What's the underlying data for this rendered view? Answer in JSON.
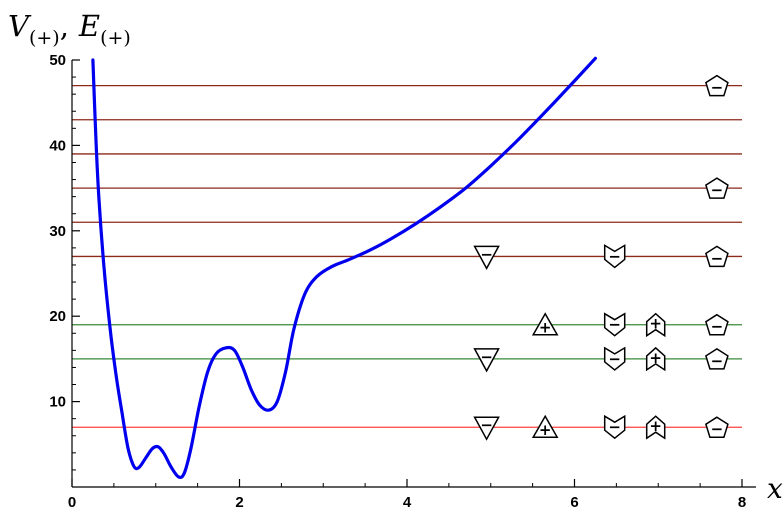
{
  "chart_data": {
    "type": "line",
    "ylabel": "V_{(+)}, E_{(+)}",
    "ylabel_main_1": "V",
    "ylabel_sub_1": "(+)",
    "ylabel_sep": ",",
    "ylabel_main_2": "E",
    "ylabel_sub_2": "(+)",
    "xlabel": "x",
    "xlim": [
      0,
      8
    ],
    "ylim": [
      0,
      50
    ],
    "x_ticks": [
      0,
      2,
      4,
      6,
      8
    ],
    "y_ticks": [
      10,
      20,
      30,
      40,
      50
    ],
    "series": [
      {
        "color": "#0000ee",
        "points": [
          [
            0.25,
            50
          ],
          [
            0.28,
            42
          ],
          [
            0.32,
            34
          ],
          [
            0.38,
            26
          ],
          [
            0.45,
            19
          ],
          [
            0.52,
            13.5
          ],
          [
            0.6,
            8.5
          ],
          [
            0.67,
            4.5
          ],
          [
            0.74,
            2.4
          ],
          [
            0.8,
            2.3
          ],
          [
            0.88,
            3.4
          ],
          [
            0.96,
            4.5
          ],
          [
            1.03,
            4.7
          ],
          [
            1.1,
            3.9
          ],
          [
            1.18,
            2.4
          ],
          [
            1.27,
            1.2
          ],
          [
            1.34,
            1.6
          ],
          [
            1.42,
            4.5
          ],
          [
            1.52,
            9.5
          ],
          [
            1.62,
            13.5
          ],
          [
            1.72,
            15.6
          ],
          [
            1.84,
            16.3
          ],
          [
            1.94,
            16.0
          ],
          [
            2.04,
            14.0
          ],
          [
            2.14,
            11.4
          ],
          [
            2.24,
            9.6
          ],
          [
            2.35,
            9.0
          ],
          [
            2.45,
            10.0
          ],
          [
            2.55,
            13.5
          ],
          [
            2.65,
            18.5
          ],
          [
            2.78,
            22.6
          ],
          [
            2.92,
            24.6
          ],
          [
            3.1,
            25.8
          ],
          [
            3.3,
            26.6
          ],
          [
            3.55,
            27.7
          ],
          [
            3.8,
            29.0
          ],
          [
            4.1,
            30.8
          ],
          [
            4.4,
            32.8
          ],
          [
            4.7,
            35.0
          ],
          [
            5.0,
            37.6
          ],
          [
            5.3,
            40.4
          ],
          [
            5.6,
            43.4
          ],
          [
            5.9,
            46.5
          ],
          [
            6.25,
            50.2
          ]
        ]
      }
    ],
    "energy_levels": [
      {
        "y": 7,
        "color": "#ff4040"
      },
      {
        "y": 15,
        "color": "#3a8a3a"
      },
      {
        "y": 19,
        "color": "#3a8a3a"
      },
      {
        "y": 27,
        "color": "#8b2a1a"
      },
      {
        "y": 31,
        "color": "#8b2a1a"
      },
      {
        "y": 35,
        "color": "#8b2a1a"
      },
      {
        "y": 39,
        "color": "#8b2a1a"
      },
      {
        "y": 43,
        "color": "#8b2a1a"
      },
      {
        "y": 47,
        "color": "#8b2a1a"
      }
    ],
    "markers": [
      {
        "shape": "triangle-down",
        "sign": "−",
        "x": 4.95,
        "y": 7
      },
      {
        "shape": "triangle-up",
        "sign": "+",
        "x": 5.65,
        "y": 7
      },
      {
        "shape": "notched-down",
        "sign": "−",
        "x": 6.48,
        "y": 7
      },
      {
        "shape": "notched-up",
        "sign": "+",
        "x": 6.97,
        "y": 7
      },
      {
        "shape": "pentagon",
        "sign": "−",
        "x": 7.7,
        "y": 7
      },
      {
        "shape": "triangle-down",
        "sign": "−",
        "x": 4.95,
        "y": 15
      },
      {
        "shape": "notched-down",
        "sign": "−",
        "x": 6.48,
        "y": 15
      },
      {
        "shape": "notched-up",
        "sign": "+",
        "x": 6.97,
        "y": 15
      },
      {
        "shape": "pentagon",
        "sign": "−",
        "x": 7.7,
        "y": 15
      },
      {
        "shape": "triangle-up",
        "sign": "+",
        "x": 5.65,
        "y": 19
      },
      {
        "shape": "notched-down",
        "sign": "−",
        "x": 6.48,
        "y": 19
      },
      {
        "shape": "notched-up",
        "sign": "+",
        "x": 6.97,
        "y": 19
      },
      {
        "shape": "pentagon",
        "sign": "−",
        "x": 7.7,
        "y": 19
      },
      {
        "shape": "triangle-down",
        "sign": "−",
        "x": 4.95,
        "y": 27
      },
      {
        "shape": "notched-down",
        "sign": "−",
        "x": 6.48,
        "y": 27
      },
      {
        "shape": "pentagon",
        "sign": "−",
        "x": 7.7,
        "y": 27
      },
      {
        "shape": "pentagon",
        "sign": "−",
        "x": 7.7,
        "y": 35
      },
      {
        "shape": "pentagon",
        "sign": "−",
        "x": 7.7,
        "y": 47
      }
    ]
  }
}
